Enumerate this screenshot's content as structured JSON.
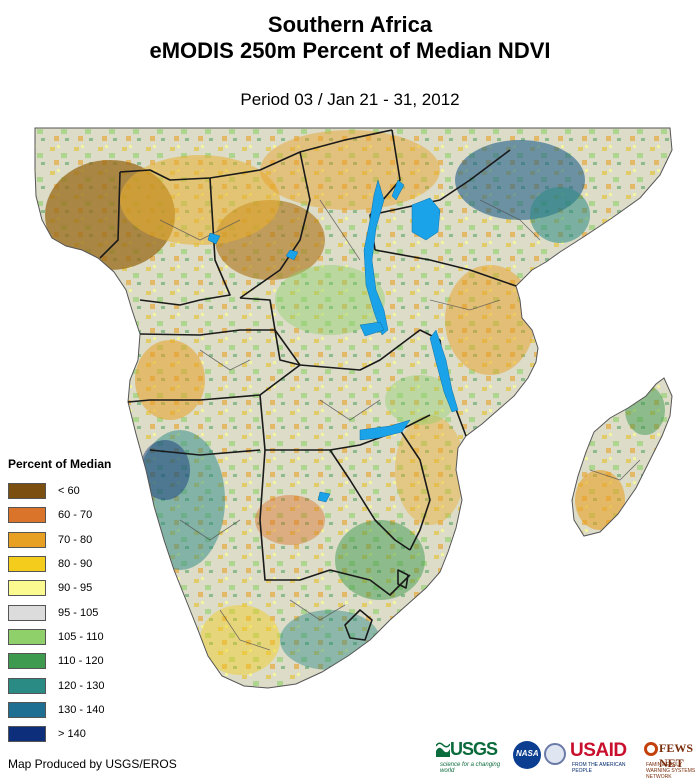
{
  "title_line1": "Southern Africa",
  "title_line2": "eMODIS 250m Percent of Median NDVI",
  "subtitle": "Period 03 / Jan 21 - 31, 2012",
  "legend": {
    "title": "Percent of Median",
    "items": [
      {
        "label": "< 60",
        "color": "#7a4f10"
      },
      {
        "label": "60 - 70",
        "color": "#d9742a"
      },
      {
        "label": "70 - 80",
        "color": "#e8a024"
      },
      {
        "label": "80 - 90",
        "color": "#f3cc1c"
      },
      {
        "label": "90 - 95",
        "color": "#fafa90"
      },
      {
        "label": "95 - 105",
        "color": "#dcdcdc"
      },
      {
        "label": "105 - 110",
        "color": "#8fd06a"
      },
      {
        "label": "110 - 120",
        "color": "#3d9a4e"
      },
      {
        "label": "120 - 130",
        "color": "#2a8a84"
      },
      {
        "label": "130 - 140",
        "color": "#1f6f93"
      },
      {
        "label": "> 140",
        "color": "#0d2e7a"
      }
    ]
  },
  "credit": "Map Produced by USGS/EROS",
  "logos": {
    "usgs": "USGS",
    "usgs_tagline": "science for a changing world",
    "nasa": "NASA",
    "usaid": "USAID",
    "usaid_tagline": "FROM THE AMERICAN PEOPLE",
    "fews": "FEWS NET",
    "fews_tagline": "FAMINE EARLY WARNING SYSTEMS NETWORK"
  },
  "map_colors": {
    "water": "#1aa3e8",
    "border": "#1a1a1a",
    "admin": "#555555"
  }
}
